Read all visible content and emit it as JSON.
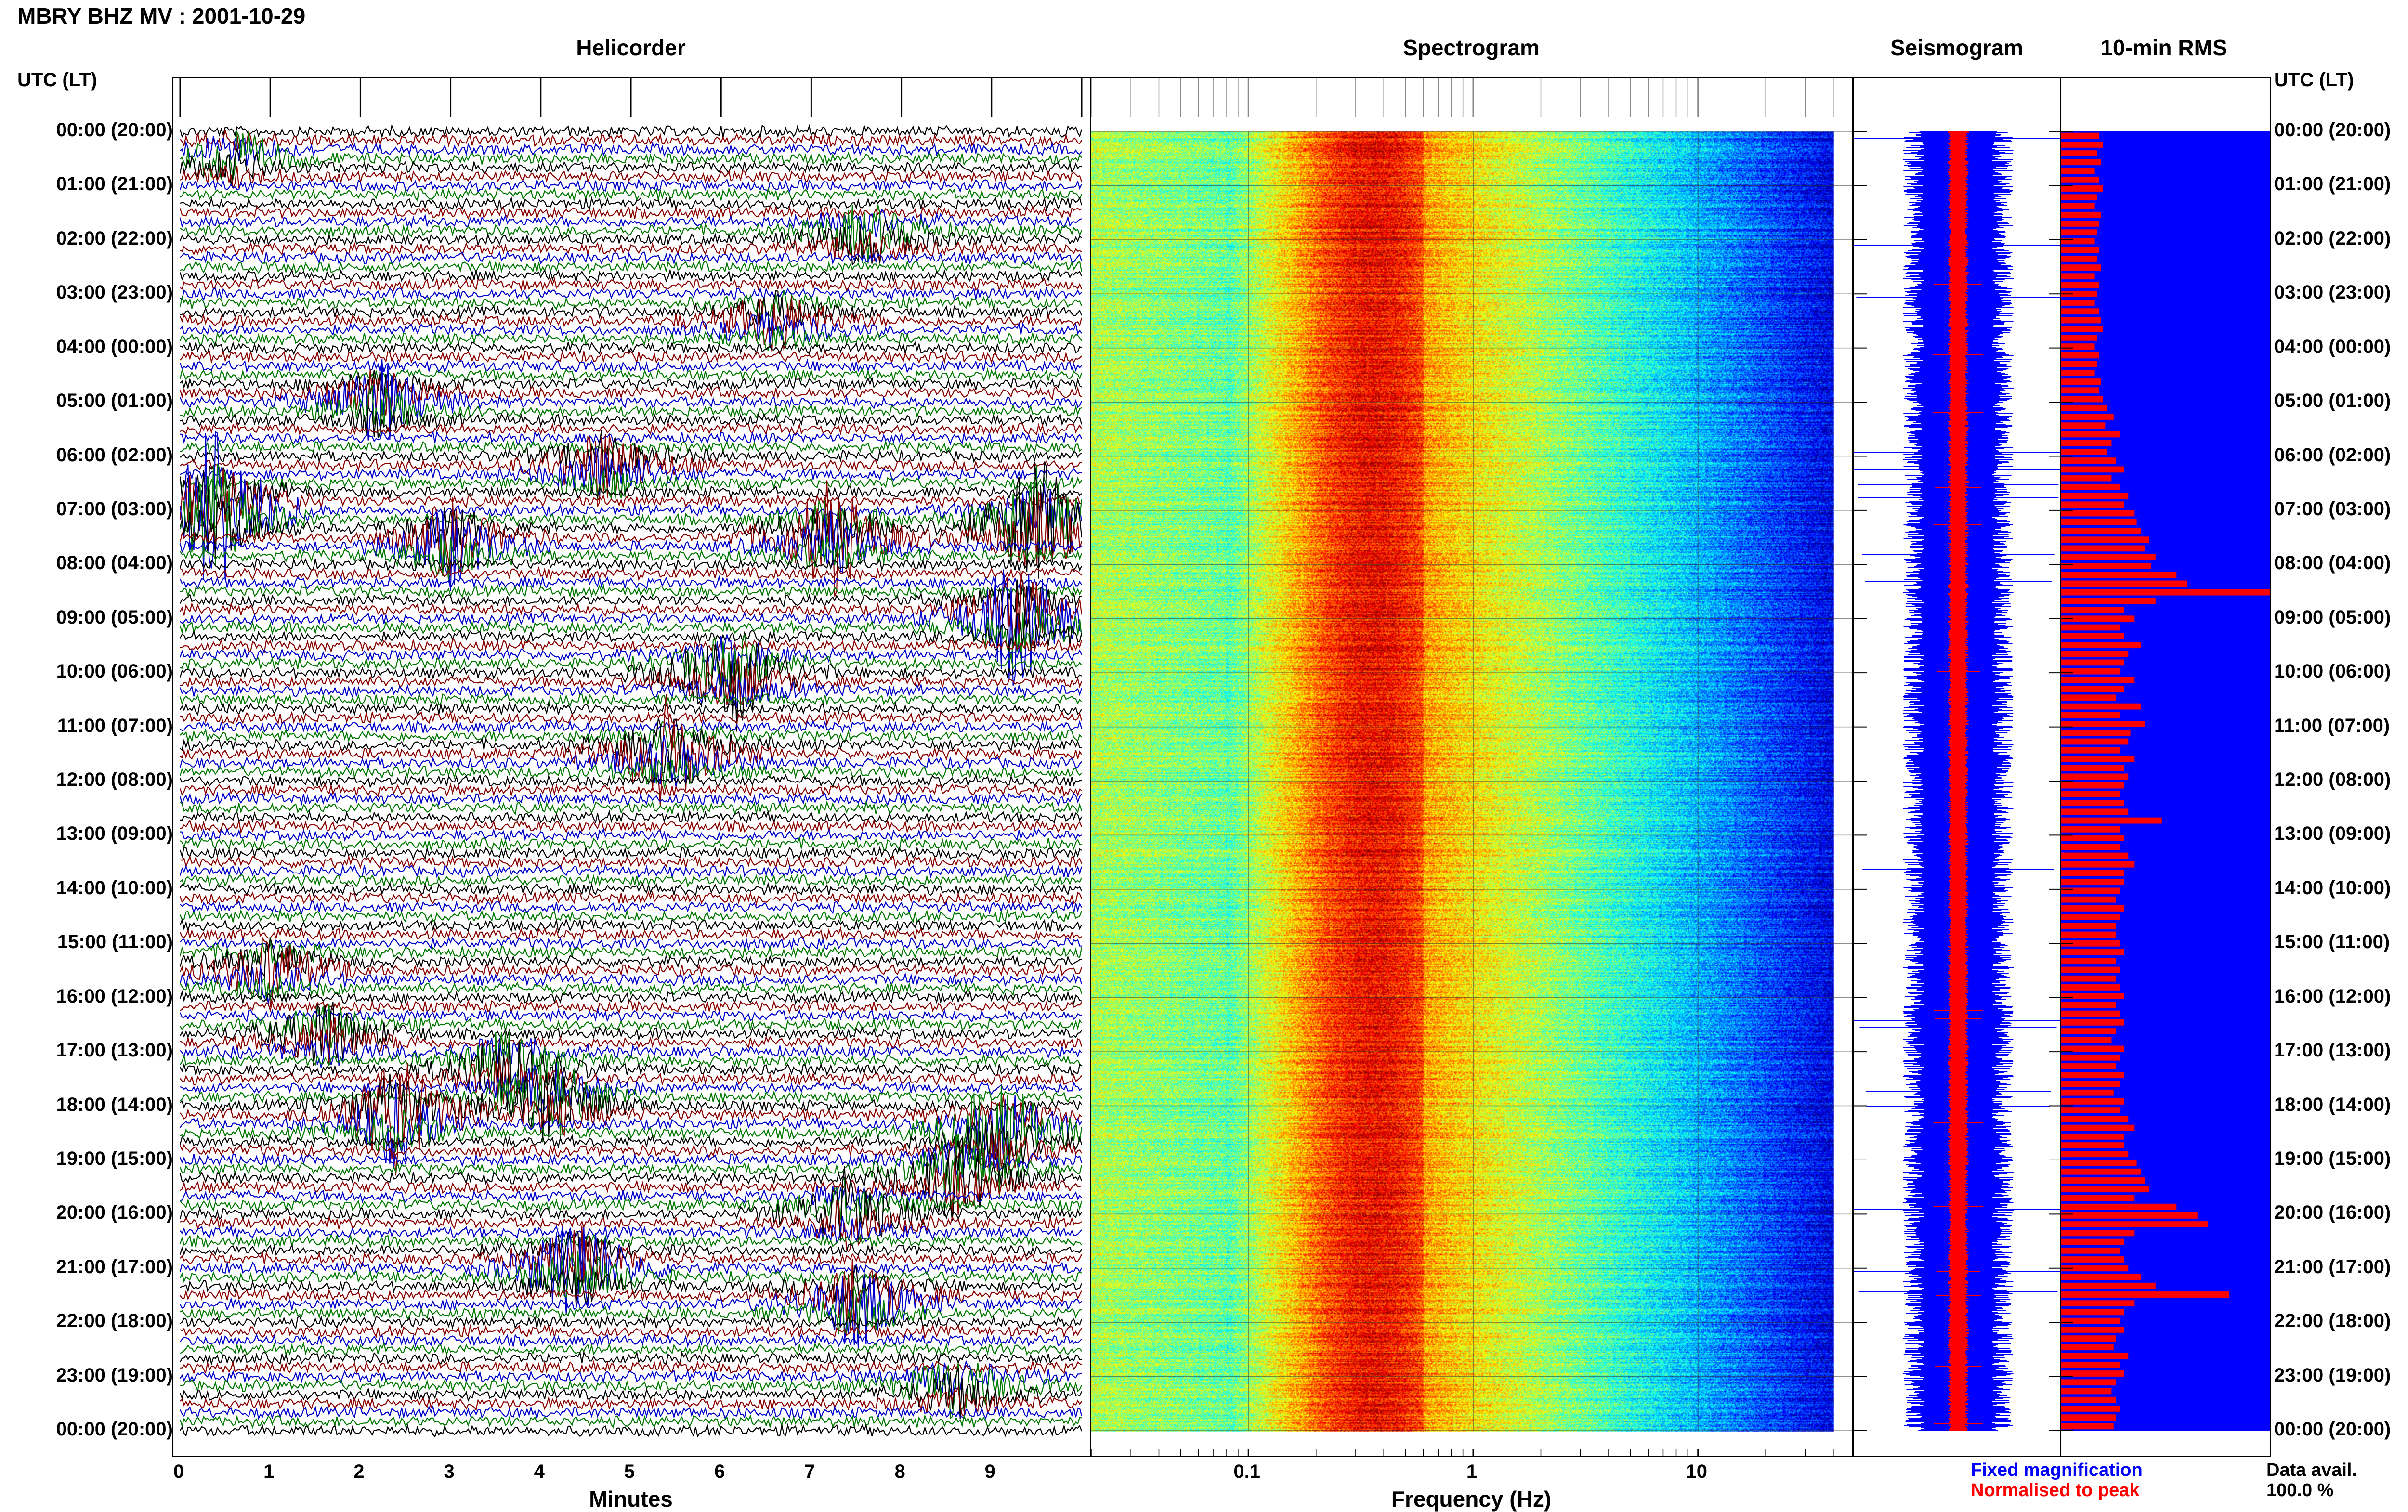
{
  "title": "MBRY BHZ MV : 2001-10-29",
  "panels": {
    "helicorder": "Helicorder",
    "spectrogram": "Spectrogram",
    "seismogram": "Seismogram",
    "rms": "10-min RMS"
  },
  "side_header": "UTC (LT)",
  "time_labels": [
    "00:00 (20:00)",
    "01:00 (21:00)",
    "02:00 (22:00)",
    "03:00 (23:00)",
    "04:00 (00:00)",
    "05:00 (01:00)",
    "06:00 (02:00)",
    "07:00 (03:00)",
    "08:00 (04:00)",
    "09:00 (05:00)",
    "10:00 (06:00)",
    "11:00 (07:00)",
    "12:00 (08:00)",
    "13:00 (09:00)",
    "14:00 (10:00)",
    "15:00 (11:00)",
    "16:00 (12:00)",
    "17:00 (13:00)",
    "18:00 (14:00)",
    "19:00 (15:00)",
    "20:00 (16:00)",
    "21:00 (17:00)",
    "22:00 (18:00)",
    "23:00 (19:00)",
    "00:00 (20:00)"
  ],
  "helicorder_axis": {
    "title": "Minutes",
    "ticks": [
      "0",
      "1",
      "2",
      "3",
      "4",
      "5",
      "6",
      "7",
      "8",
      "9"
    ]
  },
  "spectrogram_axis": {
    "title": "Frequency (Hz)",
    "ticks": [
      "0.1",
      "1",
      "10"
    ]
  },
  "legend": {
    "fixed": "Fixed magnification",
    "normalised": "Normalised to peak"
  },
  "availability": {
    "label": "Data avail.",
    "value": "100.0 %"
  },
  "colors": {
    "blue": "#0000ff",
    "red": "#ff0000",
    "dark_red": "#8b0000",
    "green": "#008000",
    "black": "#000000"
  },
  "chart_data": [
    {
      "type": "line",
      "title": "Helicorder",
      "xlabel": "Minutes",
      "xlim": [
        0,
        10
      ],
      "rows": 144,
      "trace_colors": [
        "black",
        "#8b0000",
        "#0000cc",
        "#007a00"
      ],
      "events": [
        {
          "hour": 0.5,
          "minute": 0.6,
          "amp": 1.2
        },
        {
          "hour": 1.9,
          "minute": 7.6,
          "amp": 1.6
        },
        {
          "hour": 3.5,
          "minute": 6.6,
          "amp": 1.4
        },
        {
          "hour": 5.0,
          "minute": 2.2,
          "amp": 1.8
        },
        {
          "hour": 6.2,
          "minute": 4.7,
          "amp": 2.0
        },
        {
          "hour": 7.0,
          "minute": 0.4,
          "amp": 4.0
        },
        {
          "hour": 7.3,
          "minute": 9.5,
          "amp": 3.5
        },
        {
          "hour": 7.5,
          "minute": 7.2,
          "amp": 2.5
        },
        {
          "hour": 7.6,
          "minute": 3.0,
          "amp": 2.2
        },
        {
          "hour": 9.0,
          "minute": 9.3,
          "amp": 2.8
        },
        {
          "hour": 10.0,
          "minute": 6.1,
          "amp": 2.6
        },
        {
          "hour": 11.5,
          "minute": 5.4,
          "amp": 2.2
        },
        {
          "hour": 15.5,
          "minute": 1.0,
          "amp": 1.5
        },
        {
          "hour": 16.7,
          "minute": 1.6,
          "amp": 1.8
        },
        {
          "hour": 17.3,
          "minute": 3.6,
          "amp": 2.0
        },
        {
          "hour": 17.9,
          "minute": 4.1,
          "amp": 2.6
        },
        {
          "hour": 18.2,
          "minute": 2.4,
          "amp": 3.0
        },
        {
          "hour": 18.5,
          "minute": 9.1,
          "amp": 2.8
        },
        {
          "hour": 19.3,
          "minute": 8.6,
          "amp": 2.2
        },
        {
          "hour": 20.0,
          "minute": 7.4,
          "amp": 1.8
        },
        {
          "hour": 21.0,
          "minute": 4.4,
          "amp": 2.4
        },
        {
          "hour": 21.6,
          "minute": 7.5,
          "amp": 2.4
        },
        {
          "hour": 23.2,
          "minute": 8.6,
          "amp": 1.6
        }
      ]
    },
    {
      "type": "heatmap",
      "title": "Spectrogram",
      "xlabel": "Frequency (Hz)",
      "xscale": "log",
      "xlim": [
        0.02,
        50
      ],
      "peak_band_hz": [
        0.22,
        0.6
      ],
      "upper_cutoff_hz": 40
    },
    {
      "type": "line",
      "title": "Seismogram",
      "series": [
        {
          "name": "Fixed magnification",
          "color": "#0000ff"
        },
        {
          "name": "Normalised to peak",
          "color": "#ff0000"
        }
      ]
    },
    {
      "type": "bar",
      "title": "10-min RMS",
      "orientation": "horizontal",
      "bar_color": "#ff0000",
      "background_color": "#0000ff",
      "values": [
        0.18,
        0.2,
        0.17,
        0.19,
        0.16,
        0.18,
        0.2,
        0.17,
        0.16,
        0.19,
        0.18,
        0.17,
        0.16,
        0.18,
        0.17,
        0.19,
        0.16,
        0.18,
        0.17,
        0.16,
        0.18,
        0.19,
        0.2,
        0.17,
        0.16,
        0.18,
        0.17,
        0.16,
        0.19,
        0.18,
        0.2,
        0.22,
        0.25,
        0.21,
        0.28,
        0.24,
        0.22,
        0.26,
        0.3,
        0.24,
        0.28,
        0.32,
        0.3,
        0.35,
        0.36,
        0.38,
        0.42,
        0.4,
        0.45,
        0.43,
        0.55,
        0.6,
        1.0,
        0.45,
        0.3,
        0.35,
        0.28,
        0.3,
        0.38,
        0.32,
        0.3,
        0.28,
        0.35,
        0.3,
        0.26,
        0.38,
        0.28,
        0.4,
        0.33,
        0.32,
        0.28,
        0.35,
        0.3,
        0.32,
        0.3,
        0.28,
        0.3,
        0.32,
        0.48,
        0.28,
        0.3,
        0.28,
        0.32,
        0.35,
        0.3,
        0.3,
        0.28,
        0.26,
        0.3,
        0.28,
        0.26,
        0.26,
        0.28,
        0.3,
        0.26,
        0.28,
        0.26,
        0.28,
        0.3,
        0.26,
        0.28,
        0.3,
        0.26,
        0.24,
        0.3,
        0.28,
        0.26,
        0.3,
        0.28,
        0.25,
        0.3,
        0.28,
        0.32,
        0.35,
        0.3,
        0.3,
        0.32,
        0.36,
        0.38,
        0.4,
        0.42,
        0.35,
        0.55,
        0.65,
        0.7,
        0.35,
        0.3,
        0.28,
        0.3,
        0.32,
        0.38,
        0.45,
        0.8,
        0.35,
        0.3,
        0.28,
        0.3,
        0.26,
        0.25,
        0.32,
        0.28,
        0.3,
        0.26,
        0.24,
        0.26,
        0.28,
        0.26,
        0.25
      ]
    }
  ]
}
